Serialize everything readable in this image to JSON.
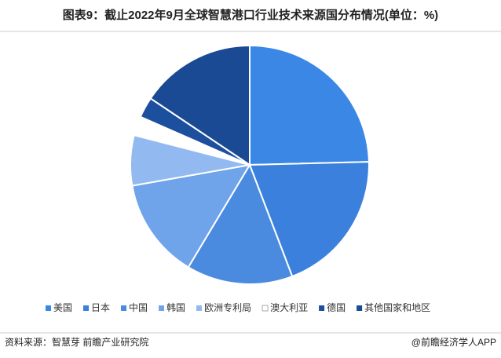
{
  "chart_data": {
    "type": "pie",
    "title": "图表9：截止2022年9月全球智慧港口行业技术来源国分布情况(单位：%)",
    "categories": [
      "美国",
      "日本",
      "中国",
      "韩国",
      "欧洲专利局",
      "澳大利亚",
      "德国",
      "其他国家和地区"
    ],
    "values": [
      24.6,
      19.6,
      14.4,
      13.6,
      6.8,
      2.6,
      2.8,
      15.6
    ],
    "colors": [
      "#3b87e6",
      "#3a80dc",
      "#4a8be0",
      "#6fa3ea",
      "#92b9f0",
      "#ffffff",
      "#1d4f9f",
      "#1a4a94"
    ],
    "legend": "bottom"
  },
  "footer": {
    "source": "资料来源：智慧芽 前瞻产业研究院",
    "brand": "@前瞻经济学人APP"
  }
}
